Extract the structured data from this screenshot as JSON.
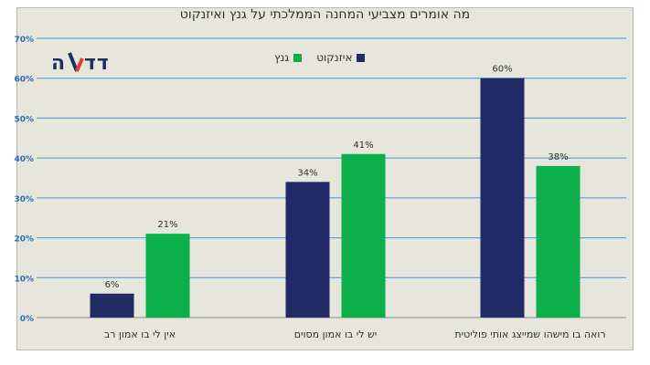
{
  "chart_data": {
    "type": "bar",
    "title": "מה אומרים מצביעי המחנה הממלכתי על גנץ ואיזנקוט",
    "categories": [
      "אין לי בו אמון רב",
      "יש לי בו אמון מסוים",
      "רואה בו מישהו שמייצג אותי פוליטית"
    ],
    "series": [
      {
        "name": "איזנקוט",
        "values": [
          6,
          34,
          60
        ],
        "labels": [
          "6%",
          "34%",
          "60%"
        ],
        "color": "#232b66"
      },
      {
        "name": "גנץ",
        "values": [
          21,
          41,
          38
        ],
        "labels": [
          "21%",
          "41%",
          "38%"
        ],
        "color": "#0bb04b"
      }
    ],
    "ylim": [
      0,
      70
    ],
    "yticks": [
      "0%",
      "10%",
      "20%",
      "30%",
      "40%",
      "50%",
      "60%",
      "70%"
    ],
    "grid": true,
    "legend_position": "top"
  },
  "logo": {
    "text": "הـעدد",
    "alt": "הدד"
  }
}
